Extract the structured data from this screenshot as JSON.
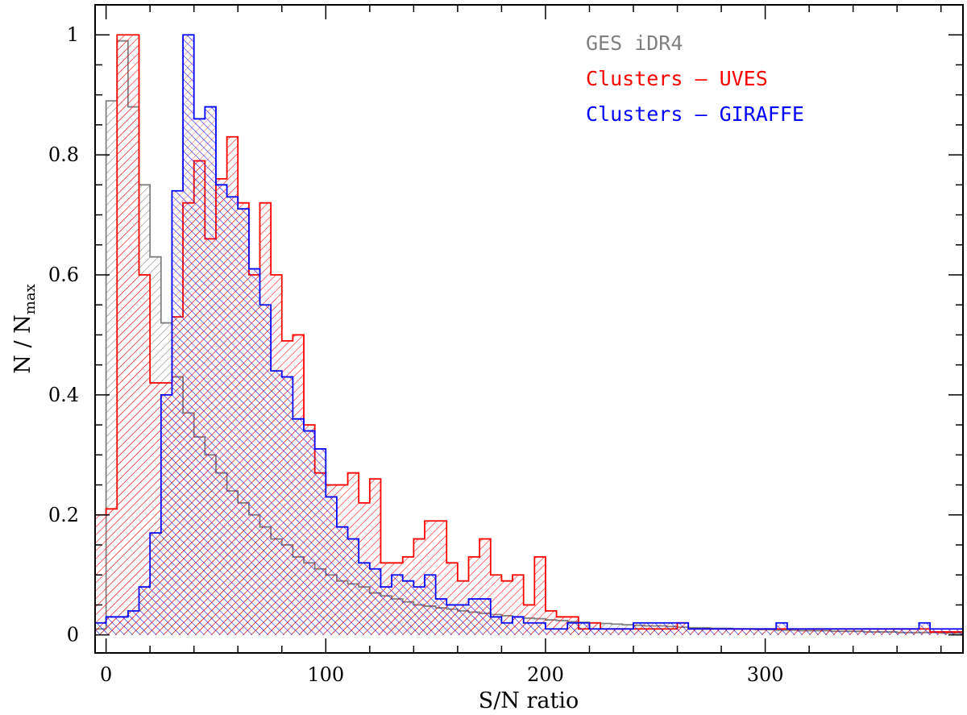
{
  "chart_data": {
    "type": "bar",
    "subtype": "histogram",
    "xlabel": "S/N ratio",
    "ylabel_main": "N / N",
    "ylabel_sub": "max",
    "xlim": [
      -5,
      390
    ],
    "ylim": [
      -0.03,
      1.05
    ],
    "xticks_major": [
      0,
      100,
      200,
      300
    ],
    "yticks_major": [
      0,
      0.2,
      0.4,
      0.6,
      0.8,
      1
    ],
    "ytick_labels": [
      "0",
      "0.2",
      "0.4",
      "0.6",
      "0.8",
      "1"
    ],
    "bin_width": 5,
    "bins_start": -5,
    "legend_position": "top-right",
    "series": [
      {
        "name": "GES iDR4",
        "color": "#808080",
        "hatch": "single",
        "values": [
          0.01,
          0.89,
          0.99,
          0.88,
          0.75,
          0.63,
          0.52,
          0.43,
          0.37,
          0.33,
          0.3,
          0.27,
          0.24,
          0.22,
          0.2,
          0.18,
          0.16,
          0.15,
          0.13,
          0.12,
          0.11,
          0.1,
          0.09,
          0.085,
          0.08,
          0.07,
          0.065,
          0.06,
          0.055,
          0.05,
          0.048,
          0.045,
          0.043,
          0.04,
          0.038,
          0.036,
          0.034,
          0.032,
          0.03,
          0.028,
          0.027,
          0.025,
          0.024,
          0.022,
          0.021,
          0.02,
          0.019,
          0.018,
          0.017,
          0.016,
          0.015,
          0.015,
          0.014,
          0.013,
          0.012,
          0.012,
          0.011,
          0.011,
          0.01,
          0.01,
          0.009,
          0.009,
          0.008,
          0.008,
          0.007,
          0.007,
          0.007,
          0.006,
          0.006,
          0.006,
          0.005,
          0.005,
          0.005,
          0.004,
          0.004,
          0.004,
          0.004,
          0.003,
          0.003
        ]
      },
      {
        "name": "Clusters – UVES",
        "color": "#ff0000",
        "hatch": "single",
        "values": [
          0.2,
          0.21,
          1.0,
          1.0,
          0.6,
          0.42,
          0.42,
          0.53,
          0.72,
          0.79,
          0.66,
          0.76,
          0.83,
          0.72,
          0.6,
          0.72,
          0.6,
          0.49,
          0.5,
          0.35,
          0.27,
          0.25,
          0.25,
          0.27,
          0.22,
          0.26,
          0.12,
          0.12,
          0.13,
          0.16,
          0.19,
          0.19,
          0.12,
          0.09,
          0.13,
          0.16,
          0.1,
          0.09,
          0.1,
          0.05,
          0.13,
          0.04,
          0.03,
          0.03,
          0.01,
          0.02,
          0.01,
          0.01,
          0.01,
          0.01,
          0.01,
          0.01,
          0.01,
          0.02,
          0.01,
          0.01,
          0.01,
          0.01,
          0.01,
          0.01,
          0.01,
          0.01,
          0.01,
          0.01,
          0.01,
          0.01,
          0.01,
          0.01,
          0.01,
          0.01,
          0.01,
          0.01,
          0.01,
          0.01,
          0.01,
          0.01,
          0.005,
          0.005,
          0.005
        ]
      },
      {
        "name": "Clusters – GIRAFFE",
        "color": "#0000ff",
        "hatch": "cross",
        "values": [
          0.02,
          0.03,
          0.03,
          0.04,
          0.08,
          0.17,
          0.4,
          0.74,
          1.0,
          0.86,
          0.88,
          0.75,
          0.73,
          0.71,
          0.61,
          0.55,
          0.44,
          0.43,
          0.36,
          0.34,
          0.31,
          0.23,
          0.18,
          0.16,
          0.12,
          0.11,
          0.08,
          0.1,
          0.09,
          0.08,
          0.1,
          0.06,
          0.05,
          0.05,
          0.06,
          0.06,
          0.03,
          0.02,
          0.03,
          0.02,
          0.02,
          0.01,
          0.01,
          0.02,
          0.02,
          0.01,
          0.01,
          0.01,
          0.01,
          0.02,
          0.02,
          0.02,
          0.02,
          0.02,
          0.01,
          0.01,
          0.01,
          0.01,
          0.01,
          0.01,
          0.01,
          0.01,
          0.02,
          0.01,
          0.01,
          0.01,
          0.01,
          0.01,
          0.01,
          0.01,
          0.01,
          0.01,
          0.01,
          0.01,
          0.01,
          0.02,
          0.01,
          0.01,
          0.01
        ]
      }
    ]
  }
}
